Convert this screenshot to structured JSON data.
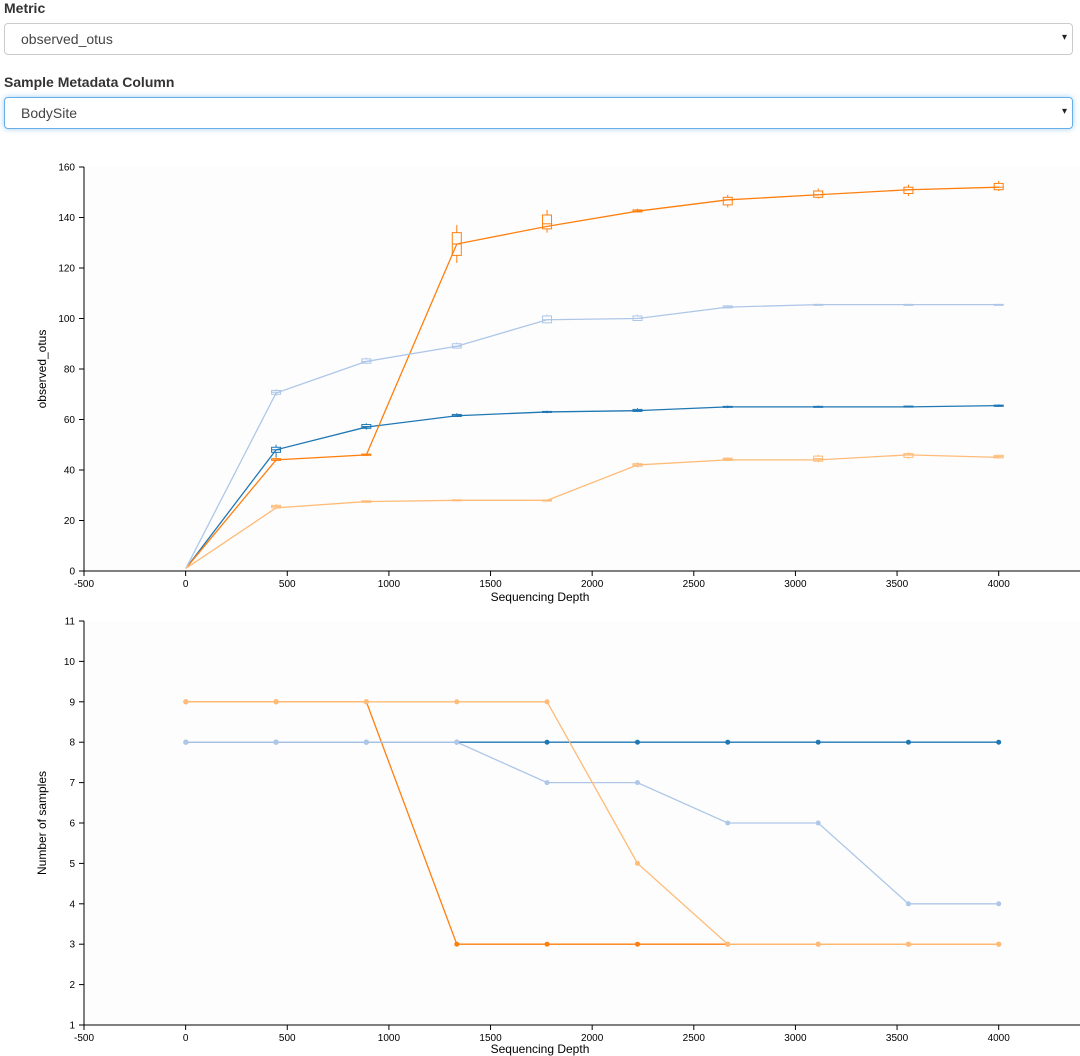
{
  "controls": {
    "metric_label": "Metric",
    "metric_value": "observed_otus",
    "column_label": "Sample Metadata Column",
    "column_value": "BodySite",
    "caret": "▾"
  },
  "colors": {
    "series": [
      "#1f77b4",
      "#ff7f0e",
      "#aec7e8",
      "#ffbb78"
    ]
  },
  "chart_data": [
    {
      "type": "line",
      "xlabel": "Sequencing Depth",
      "ylabel": "observed_otus",
      "xlim": [
        -500,
        4400
      ],
      "ylim": [
        0,
        160
      ],
      "xticks": [
        -500,
        0,
        500,
        1000,
        1500,
        2000,
        2500,
        3000,
        3500,
        4000
      ],
      "yticks": [
        0,
        20,
        40,
        60,
        80,
        100,
        120,
        140,
        160
      ],
      "x": [
        1,
        445,
        889,
        1334,
        1778,
        2223,
        2667,
        3112,
        3556,
        4000
      ],
      "series": [
        {
          "color": "#1f77b4",
          "values": [
            1,
            48,
            57,
            61.5,
            63,
            63.5,
            65,
            65,
            65,
            65.5
          ],
          "box": [
            [
              1,
              1,
              1,
              1,
              1
            ],
            [
              45,
              47,
              48,
              49,
              50
            ],
            [
              56,
              56.5,
              57.2,
              58,
              58.5
            ],
            [
              61,
              61.2,
              61.5,
              62,
              62.5
            ],
            [
              62.5,
              62.8,
              63,
              63.2,
              63.5
            ],
            [
              63,
              63.2,
              63.5,
              64,
              64.5
            ],
            [
              64.5,
              64.8,
              65,
              65.2,
              65.5
            ],
            [
              64.8,
              65,
              65,
              65.2,
              65.5
            ],
            [
              64.8,
              65,
              65.2,
              65.3,
              65.5
            ],
            [
              65,
              65.2,
              65.5,
              65.7,
              66
            ]
          ]
        },
        {
          "color": "#ff7f0e",
          "values": [
            1,
            44,
            46,
            129.5,
            136.5,
            142.5,
            147,
            149,
            151,
            152
          ],
          "box": [
            [
              1,
              1,
              1,
              1,
              1
            ],
            [
              43.5,
              43.8,
              44,
              44.5,
              45
            ],
            [
              45.5,
              45.8,
              46,
              46.3,
              46.5
            ],
            [
              122,
              125,
              129.5,
              134,
              137
            ],
            [
              134,
              135.5,
              137.5,
              141,
              143
            ],
            [
              142,
              142.2,
              142.5,
              143,
              143.5
            ],
            [
              144,
              145,
              147,
              148,
              149
            ],
            [
              147.5,
              148,
              149,
              150.5,
              151.5
            ],
            [
              148.5,
              149.5,
              151,
              152,
              153
            ],
            [
              150.5,
              151,
              152,
              153.5,
              154.5
            ]
          ]
        },
        {
          "color": "#aec7e8",
          "values": [
            1,
            70.5,
            83,
            89,
            99.5,
            100,
            104.5,
            105.5,
            105.5,
            105.5
          ],
          "box": [
            [
              1,
              1,
              1,
              1,
              1
            ],
            [
              69.5,
              70,
              70.8,
              71.5,
              72
            ],
            [
              82,
              82.3,
              83,
              84,
              84.5
            ],
            [
              88,
              88.3,
              89,
              90,
              90.5
            ],
            [
              98,
              98.3,
              99.5,
              101,
              101.5
            ],
            [
              99,
              99.2,
              100,
              101,
              101.5
            ],
            [
              104,
              104.2,
              104.5,
              105,
              105.3
            ],
            [
              105.2,
              105.3,
              105.5,
              105.6,
              105.8
            ],
            [
              105.2,
              105.3,
              105.5,
              105.6,
              105.8
            ],
            [
              105.3,
              105.4,
              105.5,
              105.6,
              105.7
            ]
          ]
        },
        {
          "color": "#ffbb78",
          "values": [
            1,
            25,
            27.5,
            28,
            28,
            42,
            44,
            44,
            46,
            45
          ],
          "box": [
            [
              1,
              1,
              1,
              1,
              1
            ],
            [
              24.5,
              25,
              25.5,
              26,
              26.5
            ],
            [
              27,
              27.2,
              27.5,
              27.8,
              28
            ],
            [
              27.7,
              27.8,
              28,
              28.2,
              28.3
            ],
            [
              27.8,
              27.9,
              28,
              28.1,
              28.2
            ],
            [
              41,
              41.5,
              42,
              42.5,
              43
            ],
            [
              43.5,
              43.8,
              44.3,
              44.7,
              45
            ],
            [
              43,
              43.5,
              44.5,
              45.5,
              46
            ],
            [
              44.5,
              45,
              46,
              46.5,
              47
            ],
            [
              44.5,
              44.8,
              45.3,
              45.8,
              46
            ]
          ]
        }
      ]
    },
    {
      "type": "line",
      "xlabel": "Sequencing Depth",
      "ylabel": "Number of samples",
      "xlim": [
        -500,
        4400
      ],
      "ylim": [
        1,
        11
      ],
      "xticks": [
        -500,
        0,
        500,
        1000,
        1500,
        2000,
        2500,
        3000,
        3500,
        4000
      ],
      "yticks": [
        1,
        2,
        3,
        4,
        5,
        6,
        7,
        8,
        9,
        10,
        11
      ],
      "x": [
        1,
        445,
        889,
        1334,
        1778,
        2223,
        2667,
        3112,
        3556,
        4000
      ],
      "series": [
        {
          "color": "#1f77b4",
          "values": [
            8,
            8,
            8,
            8,
            8,
            8,
            8,
            8,
            8,
            8
          ]
        },
        {
          "color": "#ff7f0e",
          "values": [
            9,
            9,
            9,
            3,
            3,
            3,
            3,
            3,
            3,
            3
          ]
        },
        {
          "color": "#aec7e8",
          "values": [
            8,
            8,
            8,
            8,
            7,
            7,
            6,
            6,
            4,
            4
          ]
        },
        {
          "color": "#ffbb78",
          "values": [
            9,
            9,
            9,
            9,
            9,
            5,
            3,
            3,
            3,
            3
          ]
        }
      ]
    }
  ]
}
